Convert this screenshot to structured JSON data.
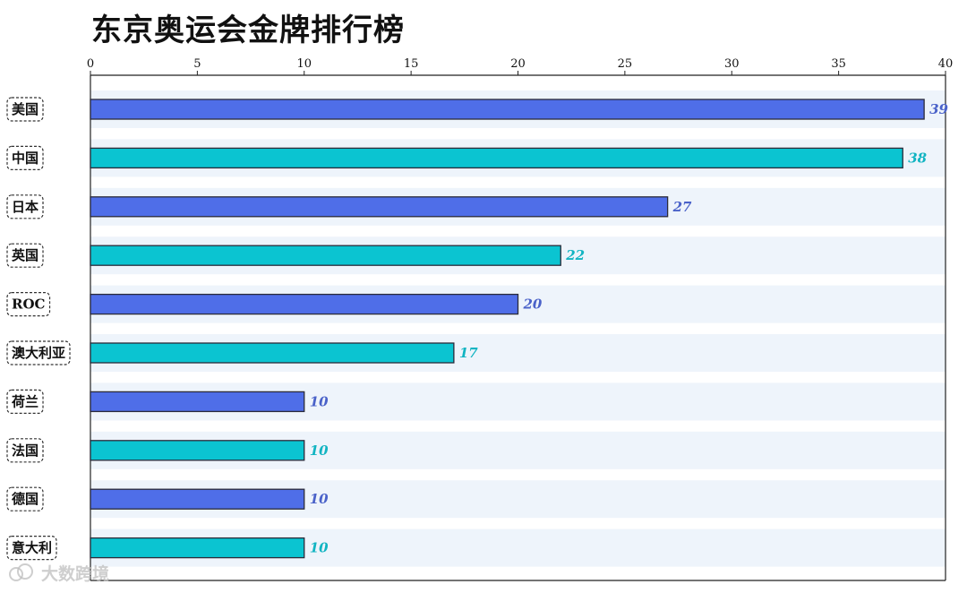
{
  "title": "东京奥运会金牌排行榜",
  "watermark": {
    "text": "大数跨境",
    "icon": "brand-logo-icon"
  },
  "colors": {
    "primary": "#4f6ee8",
    "secondary": "#0bc4d1",
    "primary_label": "#4a62c9",
    "secondary_label": "#12b4c2",
    "row_band": "#eef4fb",
    "bar_edge": "#2b2b3a"
  },
  "chart_data": {
    "type": "bar",
    "orientation": "horizontal",
    "title": "东京奥运会金牌排行榜",
    "xlabel": "",
    "ylabel": "",
    "xlim": [
      0,
      40
    ],
    "x_ticks": [
      0,
      5,
      10,
      15,
      20,
      25,
      30,
      35,
      40
    ],
    "x_axis_position": "top",
    "grid": false,
    "legend": "none",
    "categories": [
      "美国",
      "中国",
      "日本",
      "英国",
      "ROC",
      "澳大利亚",
      "荷兰",
      "法国",
      "德国",
      "意大利"
    ],
    "values": [
      39,
      38,
      27,
      22,
      20,
      17,
      10,
      10,
      10,
      10
    ],
    "bar_colors_alternate": [
      "#4f6ee8",
      "#0bc4d1"
    ]
  }
}
